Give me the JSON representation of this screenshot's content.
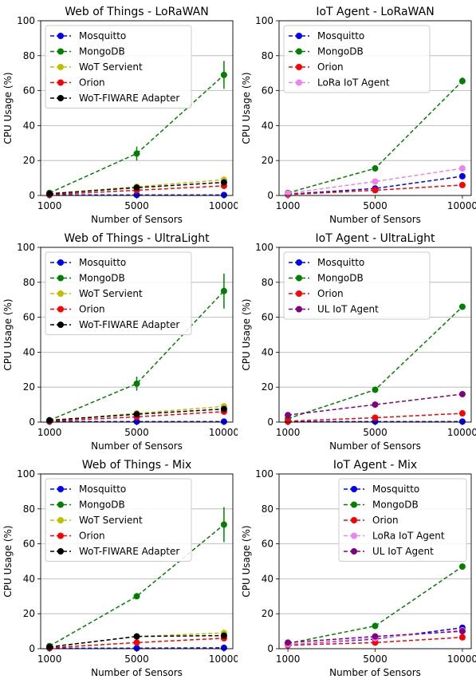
{
  "colors": {
    "Mosquitto": "#0000ff",
    "MongoDB": "#008000",
    "WoT Servient": "#bfbf00",
    "Orion": "#ff0000",
    "WoT-FIWARE Adapter": "#000000",
    "LoRa IoT Agent": "#ee82ee",
    "UL IoT Agent": "#800080",
    "grid": "#b0b0b0"
  },
  "chart_data": [
    {
      "type": "line",
      "title": "Web of Things - LoRaWAN",
      "xlabel": "Number of Sensors",
      "ylabel": "CPU Usage (%)",
      "categories": [
        "1000",
        "5000",
        "10000"
      ],
      "yticks": [
        "0",
        "20",
        "40",
        "60",
        "80",
        "100"
      ],
      "ylim": [
        0,
        100
      ],
      "grid": "horizontal",
      "legend": "top-left",
      "series": [
        {
          "name": "Mosquitto",
          "values": [
            0.3,
            0.3,
            0.3
          ],
          "err": [
            0,
            0,
            0
          ]
        },
        {
          "name": "MongoDB",
          "values": [
            1.5,
            24,
            69
          ],
          "err": [
            0.5,
            4,
            8
          ]
        },
        {
          "name": "WoT Servient",
          "values": [
            1,
            5,
            9
          ],
          "err": [
            0,
            0.5,
            1
          ]
        },
        {
          "name": "Orion",
          "values": [
            0.5,
            3,
            5.5
          ],
          "err": [
            0,
            0.5,
            1
          ]
        },
        {
          "name": "WoT-FIWARE Adapter",
          "values": [
            1,
            4.5,
            7.5
          ],
          "err": [
            0,
            0.5,
            1
          ]
        }
      ]
    },
    {
      "type": "line",
      "title": "IoT Agent - LoRaWAN",
      "xlabel": "Number of Sensors",
      "ylabel": "CPU Usage (%)",
      "categories": [
        "1000",
        "5000",
        "10000"
      ],
      "yticks": [
        "0",
        "20",
        "40",
        "60",
        "80",
        "100"
      ],
      "ylim": [
        0,
        100
      ],
      "grid": "horizontal",
      "legend": "top-left",
      "series": [
        {
          "name": "Mosquitto",
          "values": [
            0.7,
            4,
            11
          ],
          "err": [
            0,
            0,
            0
          ]
        },
        {
          "name": "MongoDB",
          "values": [
            1.5,
            15.5,
            65.5
          ],
          "err": [
            0,
            1,
            2
          ]
        },
        {
          "name": "Orion",
          "values": [
            0.5,
            3,
            6
          ],
          "err": [
            0,
            0,
            0
          ]
        },
        {
          "name": "LoRa IoT Agent",
          "values": [
            1.2,
            8,
            15.5
          ],
          "err": [
            0,
            0,
            0
          ]
        }
      ]
    },
    {
      "type": "line",
      "title": "Web of Things - UltraLight",
      "xlabel": "Number of Sensors",
      "ylabel": "CPU Usage (%)",
      "categories": [
        "1000",
        "5000",
        "10000"
      ],
      "yticks": [
        "0",
        "20",
        "40",
        "60",
        "80",
        "100"
      ],
      "ylim": [
        0,
        100
      ],
      "grid": "horizontal",
      "legend": "top-left",
      "series": [
        {
          "name": "Mosquitto",
          "values": [
            0.3,
            0.3,
            0.3
          ],
          "err": [
            0,
            0,
            0
          ]
        },
        {
          "name": "MongoDB",
          "values": [
            1,
            22,
            75
          ],
          "err": [
            0.5,
            4,
            10
          ]
        },
        {
          "name": "WoT Servient",
          "values": [
            1,
            5,
            9
          ],
          "err": [
            0,
            0.5,
            1
          ]
        },
        {
          "name": "Orion",
          "values": [
            0.5,
            3,
            6
          ],
          "err": [
            0,
            0.5,
            1
          ]
        },
        {
          "name": "WoT-FIWARE Adapter",
          "values": [
            1,
            4.5,
            7.5
          ],
          "err": [
            0,
            0.5,
            1
          ]
        }
      ]
    },
    {
      "type": "line",
      "title": "IoT Agent - UltraLight",
      "xlabel": "Number of Sensors",
      "ylabel": "CPU Usage (%)",
      "categories": [
        "1000",
        "5000",
        "10000"
      ],
      "yticks": [
        "0",
        "20",
        "40",
        "60",
        "80",
        "100"
      ],
      "ylim": [
        0,
        100
      ],
      "grid": "horizontal",
      "legend": "top-left",
      "series": [
        {
          "name": "Mosquitto",
          "values": [
            0.3,
            0.3,
            0.3
          ],
          "err": [
            0,
            0,
            0
          ]
        },
        {
          "name": "MongoDB",
          "values": [
            2,
            18.5,
            66
          ],
          "err": [
            0,
            1,
            1.5
          ]
        },
        {
          "name": "Orion",
          "values": [
            0.5,
            2.5,
            5
          ],
          "err": [
            0,
            0,
            0
          ]
        },
        {
          "name": "UL IoT Agent",
          "values": [
            4,
            10,
            16
          ],
          "err": [
            0,
            0,
            0
          ]
        }
      ]
    },
    {
      "type": "line",
      "title": "Web of Things - Mix",
      "xlabel": "Number of Sensors",
      "ylabel": "CPU Usage (%)",
      "categories": [
        "1000",
        "5000",
        "10000"
      ],
      "yticks": [
        "0",
        "20",
        "40",
        "60",
        "80",
        "100"
      ],
      "ylim": [
        0,
        100
      ],
      "grid": "horizontal",
      "legend": "top-left",
      "series": [
        {
          "name": "Mosquitto",
          "values": [
            0.3,
            0.3,
            0.5
          ],
          "err": [
            0,
            0,
            0
          ]
        },
        {
          "name": "MongoDB",
          "values": [
            1.5,
            30,
            71
          ],
          "err": [
            0.5,
            1,
            10
          ]
        },
        {
          "name": "WoT Servient",
          "values": [
            1,
            7,
            9
          ],
          "err": [
            0,
            0.5,
            1
          ]
        },
        {
          "name": "Orion",
          "values": [
            0.5,
            3.5,
            6
          ],
          "err": [
            0,
            0.5,
            1
          ]
        },
        {
          "name": "WoT-FIWARE Adapter",
          "values": [
            1,
            7,
            7.5
          ],
          "err": [
            0,
            0.5,
            1
          ]
        }
      ]
    },
    {
      "type": "line",
      "title": "IoT Agent - Mix",
      "xlabel": "Number of Sensors",
      "ylabel": "CPU Usage (%)",
      "categories": [
        "1000",
        "5000",
        "10000"
      ],
      "yticks": [
        "0",
        "20",
        "40",
        "60",
        "80",
        "100"
      ],
      "ylim": [
        0,
        100
      ],
      "grid": "horizontal",
      "legend": "top-right",
      "series": [
        {
          "name": "Mosquitto",
          "values": [
            2.5,
            5.5,
            12
          ],
          "err": [
            0,
            0,
            0
          ]
        },
        {
          "name": "MongoDB",
          "values": [
            3,
            13,
            47
          ],
          "err": [
            0,
            1,
            1
          ]
        },
        {
          "name": "Orion",
          "values": [
            2,
            3.5,
            6.5
          ],
          "err": [
            0,
            0,
            0
          ]
        },
        {
          "name": "LoRa IoT Agent",
          "values": [
            2.5,
            6,
            10.5
          ],
          "err": [
            0,
            0,
            0
          ]
        },
        {
          "name": "UL IoT Agent",
          "values": [
            3.5,
            7,
            10
          ],
          "err": [
            0,
            0,
            0
          ]
        }
      ]
    }
  ]
}
